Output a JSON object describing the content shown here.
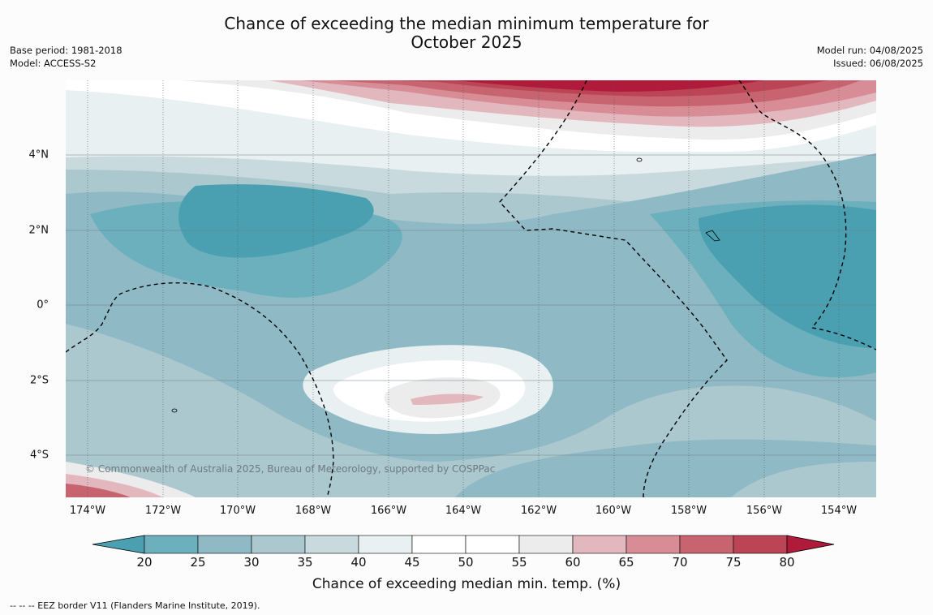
{
  "title_line1": "Chance of exceeding the median minimum temperature for",
  "title_line2": "October 2025",
  "base_period": "Base period: 1981-2018",
  "model": "Model: ACCESS-S2",
  "model_run": "Model run: 04/08/2025",
  "issued": "Issued: 06/08/2025",
  "copyright": "© Commonwealth of Australia 2025, Bureau of Meteorology, supported by COSPPac",
  "lon_labels": [
    "174°W",
    "172°W",
    "170°W",
    "168°W",
    "166°W",
    "164°W",
    "162°W",
    "160°W",
    "158°W",
    "156°W",
    "154°W"
  ],
  "lat_labels": [
    "4°N",
    "2°N",
    "0°",
    "2°S",
    "4°S"
  ],
  "colorbar": {
    "ticks": [
      "20",
      "25",
      "30",
      "35",
      "40",
      "45",
      "50",
      "55",
      "60",
      "65",
      "70",
      "75",
      "80"
    ],
    "colors": [
      "#4aa0b1",
      "#6cafbd",
      "#8fbac5",
      "#abc8cf",
      "#c8dadd",
      "#e9f0f2",
      "#ffffff",
      "#ffffff",
      "#ececed",
      "#e2b7bd",
      "#d78c96",
      "#c76470",
      "#bb4555",
      "#b01b3b"
    ],
    "label": "Chance of exceeding median min. temp. (%)"
  },
  "footer": "-- -- -- EEZ border V11 (Flanders Marine Institute, 2019)."
}
